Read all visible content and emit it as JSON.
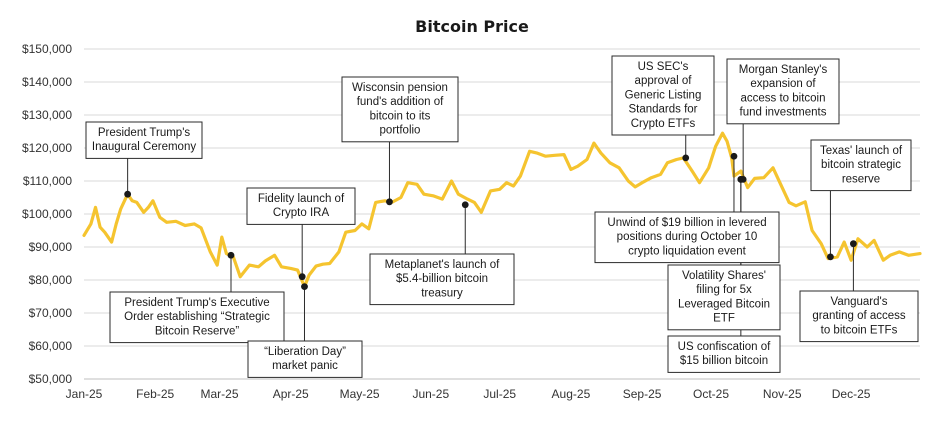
{
  "chart_data": {
    "type": "line",
    "title": "Bitcoin Price",
    "xlabel": "",
    "ylabel": "",
    "ylim": [
      50000,
      150000
    ],
    "yticks": [
      "$50,000",
      "$60,000",
      "$70,000",
      "$80,000",
      "$90,000",
      "$100,000",
      "$110,000",
      "$120,000",
      "$130,000",
      "$140,000",
      "$150,000"
    ],
    "xticks": [
      "Jan-25",
      "Feb-25",
      "Mar-25",
      "Apr-25",
      "May-25",
      "Jun-25",
      "Jul-25",
      "Aug-25",
      "Sep-25",
      "Oct-25",
      "Nov-25",
      "Dec-25"
    ],
    "grid": "horizontal",
    "line_color": "#f5c42f",
    "series": [
      {
        "x": [
          "2025-01-01",
          "2025-01-04",
          "2025-01-06",
          "2025-01-08",
          "2025-01-10",
          "2025-01-13",
          "2025-01-15",
          "2025-01-17",
          "2025-01-20",
          "2025-01-22",
          "2025-01-24",
          "2025-01-27",
          "2025-01-29",
          "2025-01-31",
          "2025-02-03",
          "2025-02-06",
          "2025-02-10",
          "2025-02-14",
          "2025-02-18",
          "2025-02-21",
          "2025-02-25",
          "2025-02-28",
          "2025-03-02",
          "2025-03-04",
          "2025-03-07",
          "2025-03-10",
          "2025-03-14",
          "2025-03-18",
          "2025-03-21",
          "2025-03-25",
          "2025-03-28",
          "2025-04-01",
          "2025-04-04",
          "2025-04-07",
          "2025-04-09",
          "2025-04-12",
          "2025-04-15",
          "2025-04-18",
          "2025-04-22",
          "2025-04-25",
          "2025-04-29",
          "2025-05-02",
          "2025-05-05",
          "2025-05-08",
          "2025-05-12",
          "2025-05-15",
          "2025-05-19",
          "2025-05-22",
          "2025-05-26",
          "2025-05-29",
          "2025-06-02",
          "2025-06-06",
          "2025-06-10",
          "2025-06-13",
          "2025-06-17",
          "2025-06-20",
          "2025-06-23",
          "2025-06-27",
          "2025-07-01",
          "2025-07-04",
          "2025-07-07",
          "2025-07-10",
          "2025-07-14",
          "2025-07-17",
          "2025-07-21",
          "2025-07-25",
          "2025-07-29",
          "2025-08-01",
          "2025-08-04",
          "2025-08-08",
          "2025-08-11",
          "2025-08-14",
          "2025-08-18",
          "2025-08-22",
          "2025-08-26",
          "2025-08-29",
          "2025-09-01",
          "2025-09-05",
          "2025-09-09",
          "2025-09-12",
          "2025-09-16",
          "2025-09-19",
          "2025-09-23",
          "2025-09-26",
          "2025-09-30",
          "2025-10-03",
          "2025-10-06",
          "2025-10-08",
          "2025-10-10",
          "2025-10-11",
          "2025-10-14",
          "2025-10-17",
          "2025-10-20",
          "2025-10-24",
          "2025-10-28",
          "2025-10-31",
          "2025-11-04",
          "2025-11-07",
          "2025-11-11",
          "2025-11-14",
          "2025-11-18",
          "2025-11-21",
          "2025-11-25",
          "2025-11-28",
          "2025-12-01",
          "2025-12-04",
          "2025-12-08",
          "2025-12-11",
          "2025-12-15",
          "2025-12-18",
          "2025-12-22",
          "2025-12-26",
          "2025-12-31"
        ],
        "values": [
          93500,
          97000,
          102000,
          96000,
          94500,
          91500,
          97000,
          101500,
          106000,
          104000,
          103500,
          100500,
          102000,
          104000,
          99000,
          97500,
          97800,
          96500,
          97000,
          95800,
          88500,
          84500,
          93000,
          88000,
          87000,
          81000,
          84500,
          84000,
          85800,
          87500,
          84000,
          83500,
          83000,
          78000,
          81500,
          84200,
          84800,
          85000,
          88500,
          94500,
          95000,
          97000,
          95500,
          103500,
          104000,
          103500,
          105000,
          109500,
          109000,
          106000,
          105500,
          104500,
          110000,
          106000,
          104500,
          103500,
          100500,
          107000,
          107500,
          109500,
          108500,
          111500,
          119000,
          118500,
          117500,
          117800,
          118000,
          113500,
          114500,
          116500,
          121500,
          118500,
          115500,
          114000,
          110000,
          108200,
          109500,
          111000,
          112000,
          115500,
          116500,
          117000,
          112800,
          109500,
          114000,
          120500,
          124500,
          122000,
          117000,
          111500,
          113000,
          108000,
          110800,
          111000,
          114000,
          109500,
          103500,
          102500,
          103700,
          95000,
          91000,
          86500,
          87000,
          91500,
          86000,
          92500,
          90000,
          92000,
          86000,
          87500,
          88500,
          87500,
          88000
        ]
      }
    ],
    "annotations": [
      {
        "date": "2025-01-20",
        "value": 106000,
        "lines": [
          "President Trump's",
          "Inaugural Ceremony"
        ]
      },
      {
        "date": "2025-03-06",
        "value": 87500,
        "lines": [
          "President Trump's Executive",
          "Order establishing “Strategic",
          "Bitcoin Reserve”"
        ]
      },
      {
        "date": "2025-04-06",
        "value": 81000,
        "lines": [
          "Fidelity launch of",
          "Crypto IRA"
        ]
      },
      {
        "date": "2025-04-07",
        "value": 78000,
        "lines": [
          "“Liberation Day”",
          "market panic"
        ]
      },
      {
        "date": "2025-05-14",
        "value": 103700,
        "lines": [
          "Wisconsin pension",
          "fund's addition of",
          "bitcoin to its",
          "portfolio"
        ]
      },
      {
        "date": "2025-06-16",
        "value": 102800,
        "lines": [
          "Metaplanet's launch of",
          "$5.4-billion bitcoin",
          "treasury"
        ]
      },
      {
        "date": "2025-09-20",
        "value": 117000,
        "lines": [
          "US SEC's",
          "approval of",
          "Generic Listing",
          "Standards for",
          "Crypto ETFs"
        ]
      },
      {
        "date": "2025-10-11",
        "value": 117500,
        "lines": [
          "Unwind of $19 billion in levered",
          "positions during October 10",
          "crypto liquidation event"
        ]
      },
      {
        "date": "2025-10-14",
        "value": 110500,
        "lines": [
          "Volatility Shares'",
          "filing for 5x",
          "Leveraged Bitcoin",
          "ETF"
        ]
      },
      {
        "date": "2025-10-15",
        "value": 110500,
        "lines": [
          "Morgan Stanley's",
          "expansion of",
          "access to bitcoin",
          "fund investments"
        ]
      },
      {
        "date": "2025-10-14",
        "value": 110500,
        "lines": [
          "US confiscation of",
          "$15 billion bitcoin"
        ]
      },
      {
        "date": "2025-11-22",
        "value": 87000,
        "lines": [
          "Texas' launch of",
          "bitcoin strategic",
          "reserve"
        ]
      },
      {
        "date": "2025-12-02",
        "value": 91000,
        "lines": [
          "Vanguard's",
          "granting of access",
          "to bitcoin ETFs"
        ]
      }
    ]
  }
}
